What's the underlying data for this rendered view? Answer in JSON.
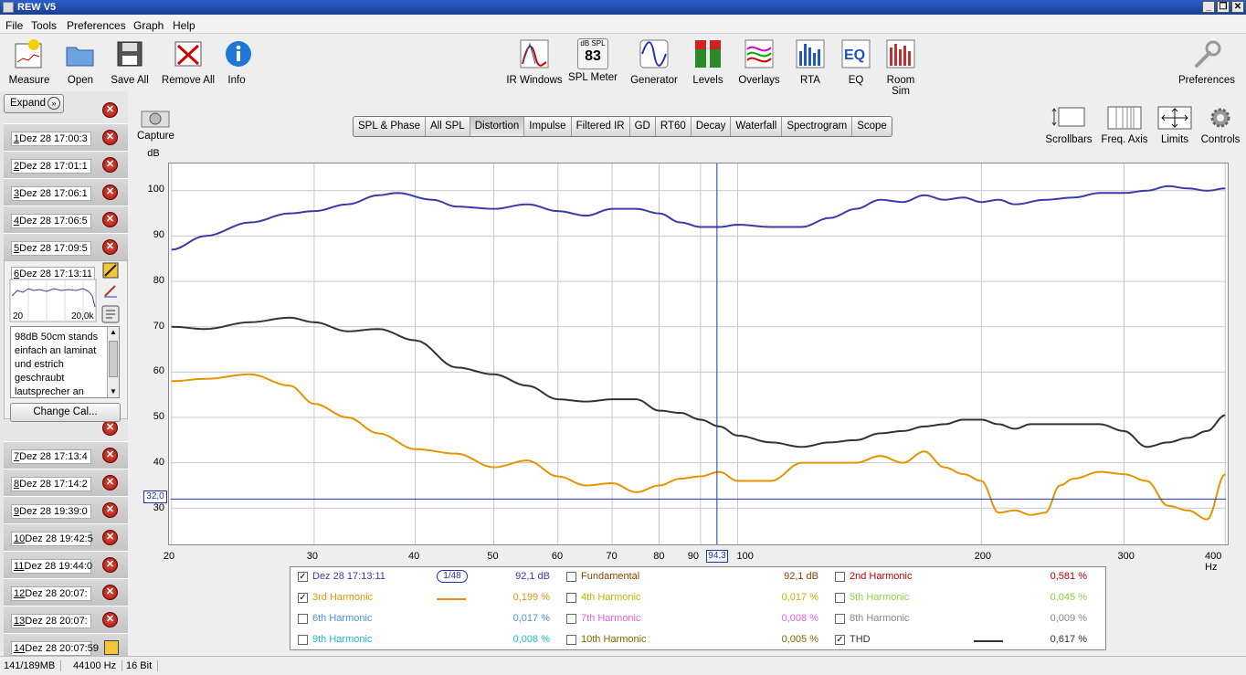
{
  "window": {
    "title": "REW V5"
  },
  "menu": [
    "File",
    "Tools",
    "Preferences",
    "Graph",
    "Help"
  ],
  "toolbar_left": [
    {
      "label": "Measure",
      "icon": "measure-icon"
    },
    {
      "label": "Open",
      "icon": "folder-icon"
    },
    {
      "label": "Save All",
      "icon": "save-icon"
    },
    {
      "label": "Remove All",
      "icon": "remove-icon"
    },
    {
      "label": "Info",
      "icon": "info-icon"
    }
  ],
  "toolbar_center": [
    {
      "label": "IR Windows",
      "icon": "ir-windows-icon"
    },
    {
      "label": "SPL Meter",
      "icon": "spl-meter-icon",
      "top_text": "dB SPL",
      "value": "83"
    },
    {
      "label": "Generator",
      "icon": "generator-icon"
    },
    {
      "label": "Levels",
      "icon": "levels-icon"
    },
    {
      "label": "Overlays",
      "icon": "overlays-icon"
    },
    {
      "label": "RTA",
      "icon": "rta-icon"
    },
    {
      "label": "EQ",
      "icon": "eq-icon"
    },
    {
      "label": "Room Sim",
      "icon": "room-sim-icon"
    }
  ],
  "toolbar_right": {
    "label": "Preferences",
    "icon": "wrench-icon"
  },
  "capture": {
    "label": "Capture"
  },
  "graph_tabs": [
    "SPL & Phase",
    "All SPL",
    "Distortion",
    "Impulse",
    "Filtered IR",
    "GD",
    "RT60",
    "Decay",
    "Waterfall",
    "Spectrogram",
    "Scope"
  ],
  "active_tab": "Distortion",
  "graph_controls": [
    "Scrollbars",
    "Freq. Axis",
    "Limits",
    "Controls"
  ],
  "expand_label": "Expand",
  "measurements": [
    {
      "num": "1",
      "label": "Dez 28 17:00:3"
    },
    {
      "num": "2",
      "label": "Dez 28 17:01:1"
    },
    {
      "num": "3",
      "label": "Dez 28 17:06:1"
    },
    {
      "num": "4",
      "label": "Dez 28 17:06:5"
    },
    {
      "num": "5",
      "label": "Dez 28 17:09:5"
    },
    {
      "num": "6",
      "label": "Dez 28 17:13:11"
    },
    {
      "num": "7",
      "label": "Dez 28 17:13:4"
    },
    {
      "num": "8",
      "label": "Dez 28 17:14:2"
    },
    {
      "num": "9",
      "label": "Dez 28 19:39:0"
    },
    {
      "num": "10",
      "label": "Dez 28 19:42:5"
    },
    {
      "num": "11",
      "label": "Dez 28 19:44:0"
    },
    {
      "num": "12",
      "label": "Dez 28 20:07:"
    },
    {
      "num": "13",
      "label": "Dez 28 20:07:"
    },
    {
      "num": "14",
      "label": "Dez 28 20:07:59"
    }
  ],
  "expanded": {
    "thumb_left": "20",
    "thumb_right": "20,0k",
    "notes": "98dB 50cm stands einfach an laminat und estrich geschraubt lautsprecher an",
    "change_cal": "Change Cal..."
  },
  "y_axis": {
    "unit": "dB",
    "ticks": [
      "100",
      "90",
      "80",
      "70",
      "60",
      "50",
      "40",
      "30"
    ]
  },
  "x_axis": {
    "ticks": [
      "20",
      "30",
      "40",
      "50",
      "60",
      "70",
      "80",
      "90",
      "100",
      "200",
      "300",
      "400 Hz"
    ]
  },
  "cursor": {
    "y_value": "32,0",
    "x_value": "94,3"
  },
  "legend": [
    {
      "checked": true,
      "name": "Dez 28 17:13:11",
      "value": "92,1 dB",
      "color": "#3b3ba8",
      "style": "smoothing",
      "smoothing": "1/48"
    },
    {
      "checked": false,
      "name": "Fundamental",
      "value": "92,1 dB",
      "color": "#8a4500"
    },
    {
      "checked": false,
      "name": "2nd Harmonic",
      "value": "0,581 %",
      "color": "#c00000"
    },
    {
      "checked": true,
      "name": "3rd Harmonic",
      "value": "0,199 %",
      "color": "#e59400",
      "style": "line"
    },
    {
      "checked": false,
      "name": "4th Harmonic",
      "value": "0,017 %",
      "color": "#c9b000"
    },
    {
      "checked": false,
      "name": "5th Harmonic",
      "value": "0,045 %",
      "color": "#8fd040"
    },
    {
      "checked": false,
      "name": "6th Harmonic",
      "value": "0,017 %",
      "color": "#4a8fd8"
    },
    {
      "checked": false,
      "name": "7th Harmonic",
      "value": "0,008 %",
      "color": "#e060e0"
    },
    {
      "checked": false,
      "name": "8th Harmonic",
      "value": "0,009 %",
      "color": "#888888"
    },
    {
      "checked": false,
      "name": "9th Harmonic",
      "value": "0,008 %",
      "color": "#20b8c8"
    },
    {
      "checked": false,
      "name": "10th Harmonic",
      "value": "0,005 %",
      "color": "#7a6a00"
    },
    {
      "checked": true,
      "name": "THD",
      "value": "0,617 %",
      "color": "#333333",
      "style": "line"
    }
  ],
  "chart_data": {
    "type": "line",
    "x_scale": "log",
    "xlim": [
      20,
      400
    ],
    "ylim": [
      22,
      106
    ],
    "ylabel": "dB",
    "series": [
      {
        "name": "Dez 28 17:13:11",
        "color": "#3b3ba8",
        "x": [
          20,
          22,
          25,
          28,
          30,
          33,
          36,
          38,
          42,
          45,
          50,
          55,
          60,
          65,
          70,
          75,
          80,
          85,
          90,
          95,
          100,
          110,
          120,
          130,
          140,
          150,
          160,
          170,
          180,
          190,
          200,
          210,
          220,
          240,
          260,
          280,
          300,
          320,
          340,
          360,
          380,
          400
        ],
        "y": [
          87,
          90,
          93,
          95,
          95.5,
          97,
          99,
          99.5,
          98,
          96.5,
          96,
          97,
          95.5,
          94.5,
          96,
          96,
          95,
          93,
          92,
          92,
          92.5,
          92,
          92,
          94,
          96,
          98,
          97.5,
          99,
          98,
          98.5,
          97.5,
          98,
          97,
          98,
          98.5,
          99.5,
          99.5,
          100,
          101,
          100.5,
          100,
          100.5
        ]
      },
      {
        "name": "THD",
        "color": "#333333",
        "x": [
          20,
          22,
          25,
          28,
          30,
          33,
          36,
          40,
          45,
          50,
          55,
          60,
          65,
          70,
          75,
          80,
          85,
          90,
          95,
          100,
          110,
          120,
          130,
          140,
          150,
          160,
          170,
          180,
          190,
          200,
          210,
          220,
          230,
          240,
          250,
          260,
          280,
          300,
          320,
          340,
          360,
          380,
          400
        ],
        "y": [
          70,
          69.5,
          71,
          72,
          71,
          69,
          69.5,
          67,
          61,
          59.5,
          57,
          54,
          53.5,
          54,
          54,
          51.5,
          51,
          49.5,
          48,
          46,
          44.5,
          43.5,
          44.5,
          45,
          46.5,
          47,
          48,
          48.5,
          49.5,
          49.5,
          48.5,
          47.5,
          48.5,
          48.5,
          48.5,
          48.5,
          48.5,
          47,
          43.5,
          44.5,
          45.5,
          47,
          50.5
        ]
      },
      {
        "name": "3rd Harmonic",
        "color": "#e59400",
        "x": [
          20,
          22,
          25,
          28,
          30,
          33,
          36,
          40,
          45,
          50,
          55,
          60,
          65,
          70,
          75,
          80,
          85,
          90,
          95,
          100,
          110,
          120,
          130,
          140,
          150,
          160,
          170,
          180,
          190,
          200,
          210,
          220,
          230,
          240,
          250,
          260,
          280,
          300,
          320,
          340,
          360,
          380,
          400
        ],
        "y": [
          58,
          58.5,
          59.5,
          57,
          53,
          50,
          46.5,
          43,
          42,
          39,
          40.5,
          37,
          35,
          35.5,
          33.5,
          35,
          36.5,
          37,
          38,
          36,
          36,
          40,
          40,
          40,
          41.5,
          40,
          42.5,
          39,
          37.5,
          36,
          29,
          29.5,
          28.5,
          29,
          35,
          36.5,
          38,
          37.5,
          36,
          30.5,
          29.5,
          27.5,
          37.5
        ]
      }
    ]
  }
}
